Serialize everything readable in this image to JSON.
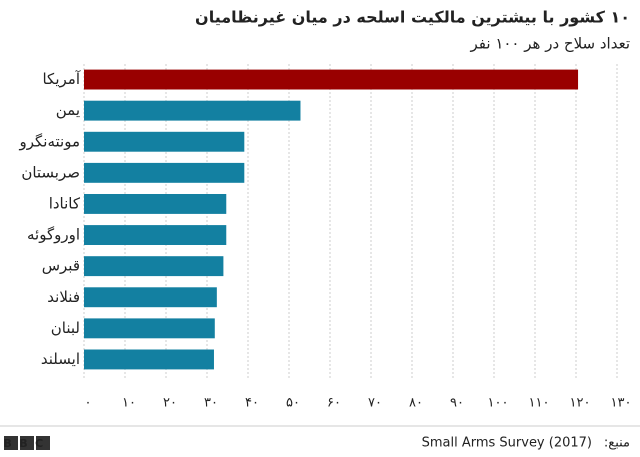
{
  "chart_data": {
    "type": "bar",
    "orientation": "horizontal",
    "title": "۱۰ کشور با بیشترین مالکیت اسلحه در میان غیرنظامیان",
    "subtitle": "تعداد سلاح در هر ۱۰۰ نفر",
    "categories": [
      "آمریکا",
      "یمن",
      "مونته‌نگرو",
      "صربستان",
      "کانادا",
      "اوروگوئه",
      "قبرس",
      "فنلاند",
      "لبنان",
      "ایسلند"
    ],
    "values": [
      120.5,
      52.8,
      39.1,
      39.1,
      34.7,
      34.7,
      34.0,
      32.4,
      31.9,
      31.7
    ],
    "colors": [
      "#990000",
      "#1380a1",
      "#1380a1",
      "#1380a1",
      "#1380a1",
      "#1380a1",
      "#1380a1",
      "#1380a1",
      "#1380a1",
      "#1380a1"
    ],
    "xlim": [
      0,
      130
    ],
    "xticks": [
      {
        "value": 0,
        "label": "۰"
      },
      {
        "value": 10,
        "label": "۱۰"
      },
      {
        "value": 20,
        "label": "۲۰"
      },
      {
        "value": 30,
        "label": "۳۰"
      },
      {
        "value": 40,
        "label": "۴۰"
      },
      {
        "value": 50,
        "label": "۵۰"
      },
      {
        "value": 60,
        "label": "۶۰"
      },
      {
        "value": 70,
        "label": "۷۰"
      },
      {
        "value": 80,
        "label": "۸۰"
      },
      {
        "value": 90,
        "label": "۹۰"
      },
      {
        "value": 100,
        "label": "۱۰۰"
      },
      {
        "value": 110,
        "label": "۱۱۰"
      },
      {
        "value": 120,
        "label": "۱۲۰"
      },
      {
        "value": 130,
        "label": "۱۳۰"
      }
    ],
    "grid": true,
    "source_label": "منبع:",
    "source": "Small Arms Survey (2017)",
    "logo": "BBC"
  }
}
